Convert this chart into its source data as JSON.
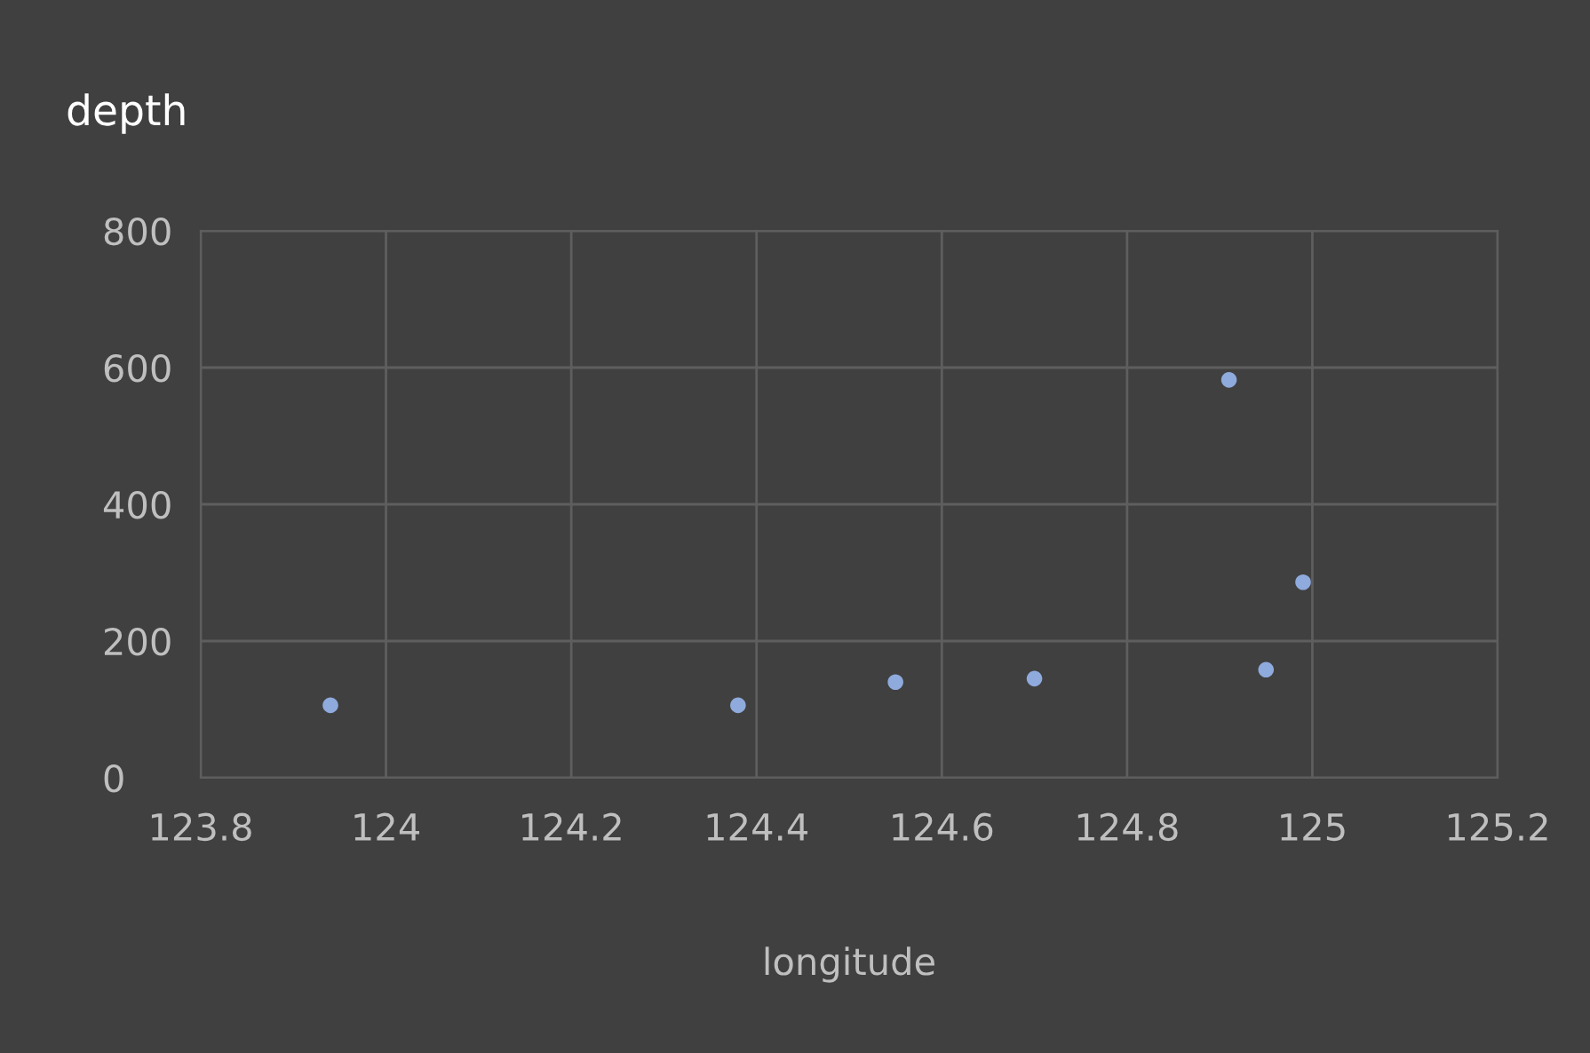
{
  "chart_data": {
    "type": "scatter",
    "title": "depth",
    "xlabel": "longitude",
    "x": [
      123.94,
      124.38,
      124.55,
      124.7,
      124.91,
      124.95,
      124.99
    ],
    "series": [
      {
        "color": "#8faadc",
        "values": [
          106,
          106,
          140,
          145,
          582,
          158,
          286
        ]
      }
    ],
    "xlim": [
      123.8,
      125.2
    ],
    "xticks": [
      123.8,
      124,
      124.2,
      124.4,
      124.6,
      124.8,
      125,
      125.2
    ],
    "ylim": [
      0,
      800
    ],
    "yticks": [
      0,
      200,
      400,
      600,
      800
    ],
    "grid": true,
    "marker": "circle",
    "legend": false
  }
}
